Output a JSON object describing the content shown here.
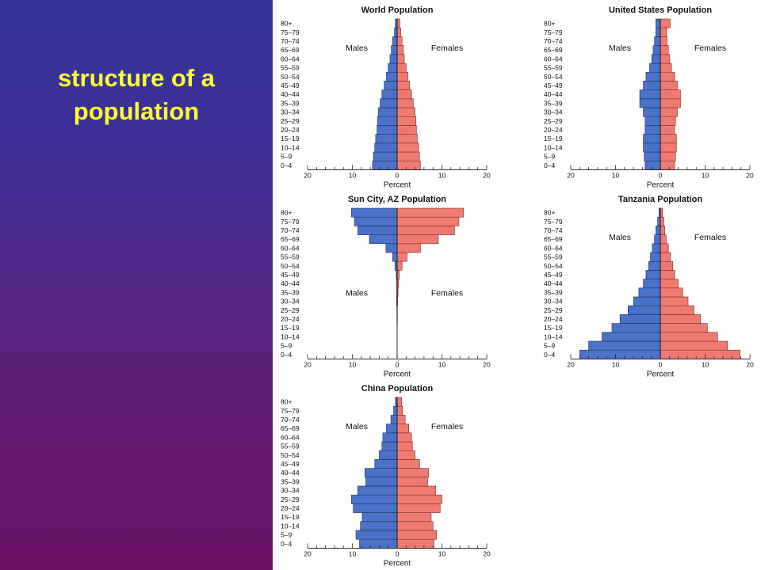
{
  "slide": {
    "title": "structure of a population",
    "colors": {
      "male": "#4a72c8",
      "female": "#f07a72",
      "title": "#ffff33"
    }
  },
  "chart_data": [
    {
      "type": "bar",
      "title": "World Population",
      "xlabel": "Percent",
      "xlim": [
        -20,
        20
      ],
      "x_ticks": [
        "20",
        "10",
        "0",
        "10",
        "20"
      ],
      "categories": [
        "0–4",
        "5–9",
        "10–14",
        "15–19",
        "20–24",
        "25–29",
        "30–34",
        "35–39",
        "40–44",
        "45–49",
        "50–54",
        "55–59",
        "60–64",
        "65–69",
        "70–74",
        "75–79",
        "80+"
      ],
      "series": [
        {
          "name": "Males",
          "values": [
            5.5,
            5.3,
            5.0,
            4.8,
            4.5,
            4.4,
            4.2,
            3.8,
            3.4,
            2.9,
            2.4,
            2.0,
            1.6,
            1.3,
            1.0,
            0.6,
            0.4
          ]
        },
        {
          "name": "Females",
          "values": [
            5.2,
            5.0,
            4.8,
            4.5,
            4.3,
            4.2,
            4.0,
            3.6,
            3.2,
            2.8,
            2.4,
            2.0,
            1.6,
            1.4,
            1.1,
            0.8,
            0.6
          ]
        }
      ],
      "label_position": "top"
    },
    {
      "type": "bar",
      "title": "United States Population",
      "xlabel": "Percent",
      "xlim": [
        -20,
        20
      ],
      "x_ticks": [
        "20",
        "10",
        "0",
        "10",
        "20"
      ],
      "categories": [
        "0–4",
        "5–9",
        "10–14",
        "15–19",
        "20–24",
        "25–29",
        "30–34",
        "35–39",
        "40–44",
        "45–49",
        "50–54",
        "55–59",
        "60–64",
        "65–69",
        "70–74",
        "75–79",
        "80+"
      ],
      "series": [
        {
          "name": "Males",
          "values": [
            3.4,
            3.6,
            3.8,
            3.8,
            3.4,
            3.4,
            3.8,
            4.6,
            4.6,
            3.8,
            3.2,
            2.4,
            1.9,
            1.6,
            1.3,
            1.0,
            1.0
          ]
        },
        {
          "name": "Females",
          "values": [
            3.2,
            3.4,
            3.6,
            3.6,
            3.2,
            3.4,
            3.8,
            4.5,
            4.5,
            3.8,
            3.2,
            2.5,
            2.1,
            1.8,
            1.5,
            1.4,
            2.2
          ]
        }
      ],
      "label_position": "top"
    },
    {
      "type": "bar",
      "title": "Sun City, AZ Population",
      "xlabel": "Percent",
      "xlim": [
        -20,
        20
      ],
      "x_ticks": [
        "20",
        "10",
        "0",
        "10",
        "20"
      ],
      "categories": [
        "0–4",
        "5–9",
        "10–14",
        "15–19",
        "20–24",
        "25–29",
        "30–34",
        "35–39",
        "40–44",
        "45–49",
        "50–54",
        "55–59",
        "60–64",
        "65–69",
        "70–74",
        "75–79",
        "80+"
      ],
      "series": [
        {
          "name": "Males",
          "values": [
            0,
            0,
            0,
            0,
            0.05,
            0.05,
            0.1,
            0.1,
            0.1,
            0.2,
            0.5,
            1.0,
            2.5,
            6.2,
            8.8,
            9.5,
            10.2
          ]
        },
        {
          "name": "Females",
          "values": [
            0,
            0,
            0,
            0,
            0.05,
            0.05,
            0.1,
            0.2,
            0.3,
            0.5,
            1.1,
            2.2,
            5.2,
            9.2,
            12.8,
            13.8,
            14.8
          ]
        }
      ],
      "label_position": "bottom"
    },
    {
      "type": "bar",
      "title": "Tanzania Population",
      "xlabel": "Percent",
      "xlim": [
        -20,
        20
      ],
      "x_ticks": [
        "20",
        "10",
        "0",
        "10",
        "20"
      ],
      "categories": [
        "0–4",
        "5–9",
        "10–14",
        "15–19",
        "20–24",
        "25–29",
        "30–34",
        "35–39",
        "40–44",
        "45–49",
        "50–54",
        "55–59",
        "60–64",
        "65–69",
        "70–74",
        "75–79",
        "80+"
      ],
      "series": [
        {
          "name": "Males",
          "values": [
            18.0,
            16.0,
            13.0,
            10.8,
            9.0,
            7.2,
            6.0,
            4.8,
            3.8,
            3.2,
            2.6,
            2.2,
            1.8,
            1.3,
            1.0,
            0.6,
            0.3
          ]
        },
        {
          "name": "Females",
          "values": [
            17.8,
            15.0,
            12.8,
            10.5,
            9.0,
            7.5,
            6.2,
            5.0,
            4.0,
            3.2,
            2.8,
            2.3,
            1.8,
            1.3,
            1.0,
            0.8,
            0.5
          ]
        }
      ],
      "label_position": "top"
    },
    {
      "type": "bar",
      "title": "China Population",
      "xlabel": "Percent",
      "xlim": [
        -20,
        20
      ],
      "x_ticks": [
        "20",
        "10",
        "0",
        "10",
        "20"
      ],
      "categories": [
        "0–4",
        "5–9",
        "10–14",
        "15–19",
        "20–24",
        "25–29",
        "30–34",
        "35–39",
        "40–44",
        "45–49",
        "50–54",
        "55–59",
        "60–64",
        "65–69",
        "70–74",
        "75–79",
        "80+"
      ],
      "series": [
        {
          "name": "Males",
          "values": [
            8.4,
            9.2,
            8.2,
            7.8,
            9.8,
            10.2,
            8.8,
            7.0,
            7.2,
            5.0,
            4.0,
            3.4,
            3.2,
            2.4,
            1.4,
            0.8,
            0.4
          ]
        },
        {
          "name": "Females",
          "values": [
            8.2,
            8.8,
            8.0,
            7.6,
            9.6,
            10.0,
            8.6,
            6.8,
            7.0,
            5.0,
            4.0,
            3.4,
            3.2,
            2.6,
            1.8,
            1.2,
            1.0
          ]
        }
      ],
      "label_position": "top"
    }
  ]
}
